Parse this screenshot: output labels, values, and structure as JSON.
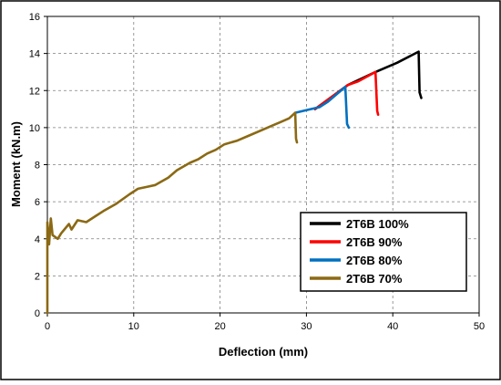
{
  "chart_data": {
    "type": "line",
    "title": "",
    "xlabel": "Deflection (mm)",
    "ylabel": "Moment (kN.m)",
    "xlim": [
      0,
      50
    ],
    "ylim": [
      0,
      16
    ],
    "x_ticks": [
      0,
      10,
      20,
      30,
      40,
      50
    ],
    "y_ticks": [
      0,
      2,
      4,
      6,
      8,
      10,
      12,
      14,
      16
    ],
    "x_tick_labels": [
      "0",
      "10",
      "20",
      "30",
      "40",
      "50"
    ],
    "y_tick_labels": [
      "0",
      "2",
      "4",
      "6",
      "8",
      "10",
      "12",
      "14",
      "16"
    ],
    "grid": "dashed",
    "legend_position": "bottom-right",
    "series": [
      {
        "name": "2T6B 100%",
        "color": "#000000",
        "points": [
          [
            31.0,
            11.0
          ],
          [
            34.8,
            12.3
          ],
          [
            38.0,
            13.0
          ],
          [
            40.5,
            13.5
          ],
          [
            43.0,
            14.1
          ],
          [
            43.1,
            11.9
          ],
          [
            43.3,
            11.6
          ]
        ]
      },
      {
        "name": "2T6B 90%",
        "color": "#ff0000",
        "points": [
          [
            31.0,
            11.0
          ],
          [
            34.8,
            12.3
          ],
          [
            36.0,
            12.5
          ],
          [
            38.0,
            13.0
          ],
          [
            38.2,
            10.9
          ],
          [
            38.3,
            10.7
          ]
        ]
      },
      {
        "name": "2T6B 80%",
        "color": "#0070c0",
        "points": [
          [
            28.7,
            10.8
          ],
          [
            30.5,
            11.0
          ],
          [
            31.5,
            11.1
          ],
          [
            32.5,
            11.4
          ],
          [
            33.5,
            11.8
          ],
          [
            34.5,
            12.2
          ],
          [
            34.7,
            10.2
          ],
          [
            34.9,
            10.0
          ]
        ]
      },
      {
        "name": "2T6B 70%",
        "color": "#8b6914",
        "points": [
          [
            0.0,
            0.0
          ],
          [
            0.0,
            4.9
          ],
          [
            0.2,
            3.7
          ],
          [
            0.4,
            5.1
          ],
          [
            0.6,
            4.2
          ],
          [
            1.2,
            4.0
          ],
          [
            1.6,
            4.3
          ],
          [
            2.5,
            4.8
          ],
          [
            2.8,
            4.5
          ],
          [
            3.5,
            5.0
          ],
          [
            4.5,
            4.9
          ],
          [
            5.5,
            5.2
          ],
          [
            6.5,
            5.5
          ],
          [
            8.0,
            5.9
          ],
          [
            9.5,
            6.4
          ],
          [
            10.5,
            6.7
          ],
          [
            11.5,
            6.8
          ],
          [
            12.5,
            6.9
          ],
          [
            14.0,
            7.3
          ],
          [
            15.0,
            7.7
          ],
          [
            16.5,
            8.1
          ],
          [
            17.5,
            8.3
          ],
          [
            18.5,
            8.6
          ],
          [
            19.5,
            8.8
          ],
          [
            20.5,
            9.1
          ],
          [
            22.0,
            9.3
          ],
          [
            23.5,
            9.6
          ],
          [
            25.0,
            9.9
          ],
          [
            26.0,
            10.1
          ],
          [
            27.0,
            10.3
          ],
          [
            28.0,
            10.5
          ],
          [
            28.7,
            10.8
          ],
          [
            28.8,
            9.4
          ],
          [
            28.9,
            9.2
          ]
        ]
      }
    ]
  }
}
